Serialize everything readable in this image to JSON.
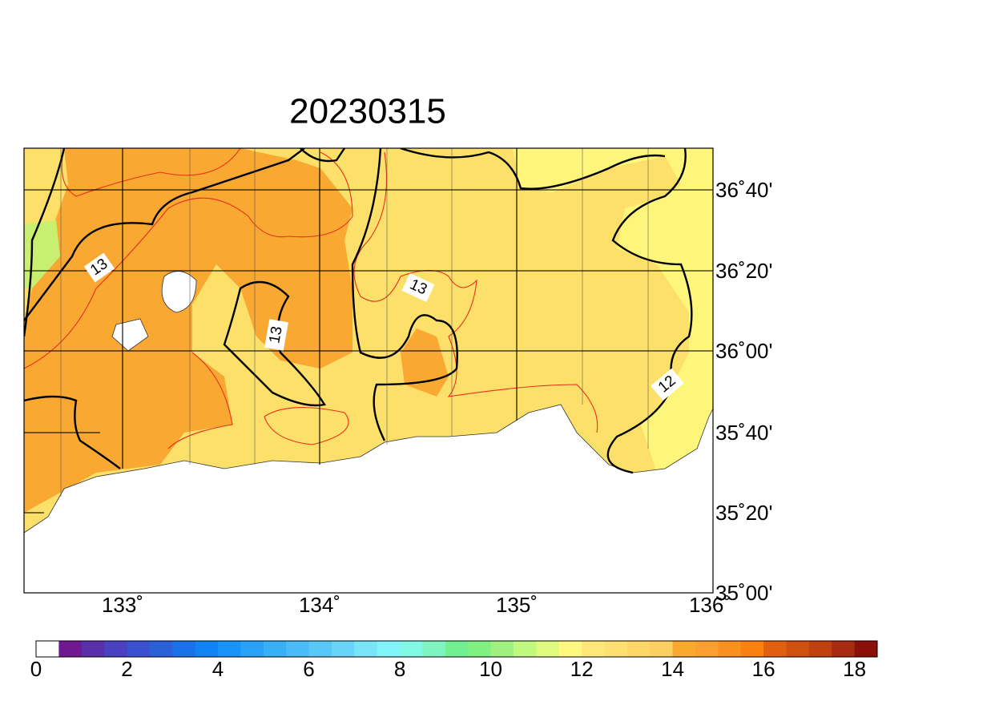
{
  "title": "20230315",
  "map": {
    "lon_labels": [
      "133˚",
      "134˚",
      "135˚",
      "136˚"
    ],
    "lat_labels": [
      "36˚40'",
      "36˚20'",
      "36˚00'",
      "35˚40'",
      "35˚20'",
      "35˚00'"
    ],
    "contour_labels": [
      "13",
      "13",
      "13",
      "12"
    ]
  },
  "colorbar": {
    "range": [
      0,
      18.5
    ],
    "ticks": [
      0,
      2,
      4,
      6,
      8,
      10,
      12,
      14,
      16,
      18
    ],
    "colors": [
      "#ffffff",
      "#701890",
      "#5a30a8",
      "#4a40c0",
      "#3a50d0",
      "#2a60d8",
      "#1a72e8",
      "#1084f4",
      "#1894f8",
      "#28a2f8",
      "#38b0f8",
      "#48bcf8",
      "#58c8f8",
      "#68d4f8",
      "#78e4f8",
      "#80f4f8",
      "#80f8e4",
      "#80f4c0",
      "#70f090",
      "#80f080",
      "#a0f080",
      "#c0f880",
      "#e0fa80",
      "#fff880",
      "#fee87a",
      "#fee070",
      "#fdd868",
      "#fcd060",
      "#faa830",
      "#faa030",
      "#fa9020",
      "#fa8010",
      "#e06010",
      "#d05010",
      "#c04010",
      "#a82a10",
      "#8a1008"
    ]
  }
}
